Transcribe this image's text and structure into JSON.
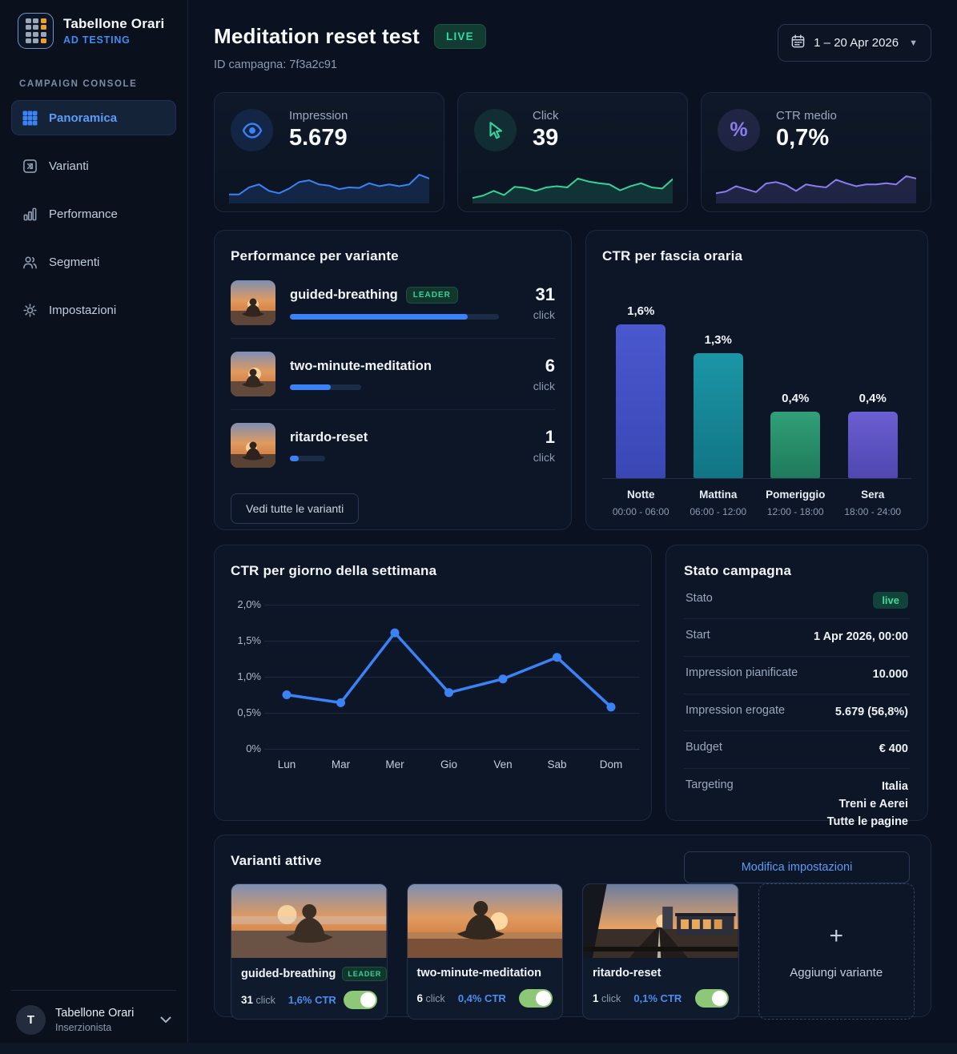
{
  "brand": {
    "name": "Tabellone Orari",
    "subtitle": "AD TESTING",
    "logo_icon": "timetable-grid-icon"
  },
  "sidebar": {
    "section_label": "CAMPAIGN CONSOLE",
    "items": [
      {
        "label": "Panoramica",
        "icon": "grid-icon",
        "active": true
      },
      {
        "label": "Varianti",
        "icon": "ab-variants-icon",
        "active": false
      },
      {
        "label": "Performance",
        "icon": "bar-chart-icon",
        "active": false
      },
      {
        "label": "Segmenti",
        "icon": "users-icon",
        "active": false
      },
      {
        "label": "Impostazioni",
        "icon": "gear-icon",
        "active": false
      }
    ],
    "user": {
      "initial": "T",
      "name": "Tabellone Orari",
      "role": "Inserzionista",
      "chevron_icon": "chevron-down-icon"
    }
  },
  "header": {
    "title": "Meditation reset test",
    "live_badge": "LIVE",
    "campaign_id": "ID campagna: 7f3a2c91",
    "date_range": "1 – 20 Apr 2026",
    "date_icon": "calendar-icon"
  },
  "stats": [
    {
      "label": "Impression",
      "value": "5.679",
      "icon": "eye-icon",
      "color": "#3b82f6"
    },
    {
      "label": "Click",
      "value": "39",
      "icon": "cursor-icon",
      "color": "#34d399"
    },
    {
      "label": "CTR medio",
      "value": "0,7%",
      "icon": "percent-icon",
      "color": "#8b7cf0"
    }
  ],
  "variant_performance": {
    "title": "Performance per variante",
    "rows": [
      {
        "name": "guided-breathing",
        "badge": "LEADER",
        "clicks": "31",
        "unit": "click",
        "track_pct": 100,
        "fill_pct": 85
      },
      {
        "name": "two-minute-meditation",
        "clicks": "6",
        "unit": "click",
        "track_pct": 34,
        "fill_pct": 58
      },
      {
        "name": "ritardo-reset",
        "clicks": "1",
        "unit": "click",
        "track_pct": 17,
        "fill_pct": 25
      }
    ],
    "button": "Vedi tutte le varianti"
  },
  "campaign_status": {
    "title": "Stato campagna",
    "rows": [
      {
        "label": "Stato",
        "value": "live"
      },
      {
        "label": "Start",
        "value": "1 Apr 2026, 00:00"
      },
      {
        "label": "Impression pianificate",
        "value": "10.000"
      },
      {
        "label": "Impression erogate",
        "value": "5.679 (56,8%)"
      },
      {
        "label": "Budget",
        "value": "€ 400"
      },
      {
        "label": "Targeting",
        "value": [
          "Italia",
          "Treni e Aerei",
          "Tutte le pagine"
        ]
      }
    ],
    "button": "Modifica impostazioni"
  },
  "active_variants": {
    "title": "Varianti attive",
    "cards": [
      {
        "name": "guided-breathing",
        "badge": "LEADER",
        "clicks": "31",
        "unit": "click",
        "ctr": "1,6% CTR",
        "toggle_on": true
      },
      {
        "name": "two-minute-meditation",
        "clicks": "6",
        "unit": "click",
        "ctr": "0,4% CTR",
        "toggle_on": true
      },
      {
        "name": "ritardo-reset",
        "clicks": "1",
        "unit": "click",
        "ctr": "0,1% CTR",
        "toggle_on": true
      }
    ],
    "add_label": "Aggiungi variante",
    "add_icon": "plus-icon"
  },
  "chart_data": [
    {
      "type": "bar",
      "title": "CTR per fascia oraria",
      "categories": [
        "Notte",
        "Mattina",
        "Pomeriggio",
        "Sera"
      ],
      "time_ranges": [
        "00:00 - 06:00",
        "06:00 - 12:00",
        "12:00 - 18:00",
        "18:00 - 24:00"
      ],
      "values": [
        1.6,
        1.3,
        0.4,
        0.4
      ],
      "value_labels": [
        "1,6%",
        "1,3%",
        "0,4%",
        "0,4%"
      ],
      "colors": [
        [
          "#4a58cf",
          "#3a47b4"
        ],
        [
          "#1b96a6",
          "#117585"
        ],
        [
          "#31a078",
          "#1f7a5b"
        ],
        [
          "#6b5ed2",
          "#5047b0"
        ]
      ],
      "ylim": [
        0,
        1.6
      ],
      "grid": false,
      "legend": "none"
    },
    {
      "type": "line",
      "title": "CTR per giorno della settimana",
      "x": [
        "Lun",
        "Mar",
        "Mer",
        "Gio",
        "Ven",
        "Sab",
        "Dom"
      ],
      "values": [
        0.75,
        0.64,
        1.61,
        0.78,
        0.97,
        1.27,
        0.58
      ],
      "y_ticks": [
        "2,0%",
        "1,5%",
        "1,0%",
        "0,5%",
        "0%"
      ],
      "ylim": [
        0,
        2
      ],
      "color": "#3b82f6",
      "grid": true,
      "legend": "none"
    },
    {
      "type": "area",
      "title": "stat-card-sparklines",
      "series": [
        {
          "name": "Impression",
          "color": "#3b82f6",
          "values": [
            0.18,
            0.18,
            0.42,
            0.52,
            0.3,
            0.22,
            0.38,
            0.6,
            0.66,
            0.52,
            0.48,
            0.36,
            0.42,
            0.4,
            0.56,
            0.46,
            0.52,
            0.46,
            0.52,
            0.85,
            0.72
          ]
        },
        {
          "name": "Click",
          "color": "#34d399",
          "values": [
            0.06,
            0.14,
            0.3,
            0.16,
            0.44,
            0.4,
            0.3,
            0.42,
            0.46,
            0.42,
            0.72,
            0.62,
            0.56,
            0.52,
            0.32,
            0.46,
            0.56,
            0.42,
            0.38,
            0.7
          ]
        },
        {
          "name": "CTR medio",
          "color": "#8b7cf0",
          "values": [
            0.22,
            0.28,
            0.46,
            0.36,
            0.26,
            0.55,
            0.6,
            0.5,
            0.3,
            0.52,
            0.46,
            0.42,
            0.68,
            0.56,
            0.46,
            0.52,
            0.52,
            0.56,
            0.52,
            0.8,
            0.72
          ]
        }
      ],
      "ylim": [
        0,
        1
      ],
      "legend": "none"
    }
  ]
}
